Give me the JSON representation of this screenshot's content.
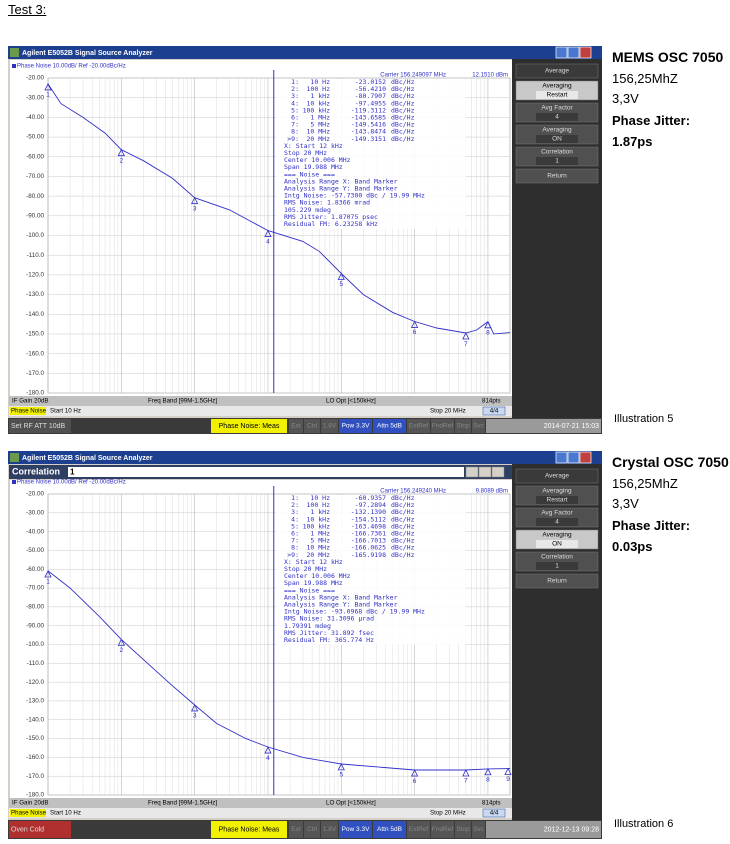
{
  "heading": "Test 3:",
  "screens": [
    {
      "window_title": "Agilent E5052B Signal Source Analyzer",
      "trace_header": "Phase Noise 10.00dB/ Ref -20.00dBc/Hz",
      "carrier": "Carrier 156.249097 MHz",
      "carrier_level": "12.1510 dBm",
      "marker_table": [
        [
          "1:",
          "10 Hz",
          "-23.0152",
          "dBc/Hz"
        ],
        [
          "2:",
          "100 Hz",
          "-56.4210",
          "dBc/Hz"
        ],
        [
          "3:",
          "1 kHz",
          "-80.7907",
          "dBc/Hz"
        ],
        [
          "4:",
          "10 kHz",
          "-97.4955",
          "dBc/Hz"
        ],
        [
          "5:",
          "100 kHz",
          "-119.3112",
          "dBc/Hz"
        ],
        [
          "6:",
          "1 MHz",
          "-143.6585",
          "dBc/Hz"
        ],
        [
          "7:",
          "5 MHz",
          "-149.5416",
          "dBc/Hz"
        ],
        [
          "8:",
          "10 MHz",
          "-143.8474",
          "dBc/Hz"
        ],
        [
          ">9:",
          "20 MHz",
          "-149.3151",
          "dBc/Hz"
        ]
      ],
      "analysis": [
        "X: Start 12 kHz",
        "Stop 20 MHz",
        "Center 10.006 MHz",
        "Span 19.988 MHz",
        "=== Noise ===",
        "Analysis Range X: Band Marker",
        "Analysis Range Y: Band Marker",
        "Intg Noise: -57.7300 dBc / 19.99 MHz",
        "RMS Noise: 1.8366 mrad",
        "105.229 mdeg",
        "RMS Jitter: 1.87075 psec",
        "Residual FM: 6.23258 kHz"
      ],
      "chart": {
        "type": "line",
        "log_x": true,
        "grid": true,
        "color": "#3030c8",
        "xlim": [
          10,
          20000000
        ],
        "ylim": [
          -180,
          -20
        ],
        "xticks": [
          10,
          100,
          1000,
          10000,
          100000,
          1000000,
          10000000
        ],
        "yticks": [
          {
            "value": -20,
            "label": "-20.00"
          },
          {
            "value": -30,
            "label": "-30.00"
          },
          {
            "value": -40,
            "label": "-40.00"
          },
          {
            "value": -50,
            "label": "-50.00"
          },
          {
            "value": -60,
            "label": "-60.00"
          },
          {
            "value": -70,
            "label": "-70.00"
          },
          {
            "value": -80,
            "label": "-80.00"
          },
          {
            "value": -90,
            "label": "-90.00"
          },
          {
            "value": -100,
            "label": "-100.0"
          },
          {
            "value": -110,
            "label": "-110.0"
          },
          {
            "value": -120,
            "label": "-120.0"
          },
          {
            "value": -130,
            "label": "-130.0"
          },
          {
            "value": -140,
            "label": "-140.0"
          },
          {
            "value": -150,
            "label": "-150.0"
          },
          {
            "value": -160,
            "label": "-160.0"
          },
          {
            "value": -170,
            "label": "-170.0"
          },
          {
            "value": -180,
            "label": "-180.0"
          }
        ],
        "x": [
          10,
          15,
          30,
          60,
          100,
          200,
          500,
          1000,
          3000,
          10000,
          30000,
          50000,
          100000,
          200000,
          500000,
          1000000,
          2000000,
          5000000,
          7000000,
          10000000,
          12000000,
          20000000
        ],
        "values": [
          -23,
          -33,
          -40,
          -48,
          -56.4,
          -62,
          -71,
          -80.8,
          -87,
          -97.5,
          -103,
          -108,
          -119.3,
          -130,
          -139,
          -143.7,
          -147,
          -149.5,
          -148,
          -143.8,
          -150,
          -149.3
        ],
        "band_start": 12000,
        "markers": [
          {
            "label": "1",
            "x": 10,
            "value": -23.0152
          },
          {
            "label": "2",
            "x": 100,
            "value": -56.421
          },
          {
            "label": "3",
            "x": 1000,
            "value": -80.7907
          },
          {
            "label": "4",
            "x": 10000,
            "value": -97.4955
          },
          {
            "label": "5",
            "x": 100000,
            "value": -119.3112
          },
          {
            "label": "6",
            "x": 1000000,
            "value": -143.6585
          },
          {
            "label": "7",
            "x": 5000000,
            "value": -149.5416
          },
          {
            "label": "8",
            "x": 10000000,
            "value": -143.8474
          }
        ]
      },
      "footer_top": [
        "IF Gain 20dB",
        "Freq Band [99M-1.5GHz]",
        "LO Opt [<150kHz]",
        "814pts"
      ],
      "footer_mid": [
        "Phase Noise",
        "Start 10 Hz",
        "Stop 20 MHz",
        "4/4"
      ],
      "status": {
        "left": "Set RF ATT 10dB",
        "left_color": "#505050",
        "mode": "Phase Noise: Meas",
        "flags": [
          "Ext",
          "Ctrl",
          "1.8V",
          "Pow 3.3V",
          "Attn 5dB",
          "ExtRef",
          "FndRef",
          "Stop",
          "Svc"
        ],
        "flags_active": [
          3,
          4
        ],
        "time": "2014-07-21 15:03"
      },
      "softkeys": [
        [
          "Average"
        ],
        [
          "Averaging",
          "Restart"
        ],
        [
          "Avg Factor",
          "4"
        ],
        [
          "Averaging",
          "ON"
        ],
        [
          "Correlation",
          "1"
        ],
        [
          "Return"
        ]
      ],
      "softkey_highlight": 1,
      "caption": {
        "title": "MEMS OSC 7050",
        "lines": [
          "156,25MhZ",
          "3,3V"
        ],
        "jitter_label": "Phase Jitter:",
        "jitter": "1.87ps"
      },
      "illustration": "Illustration 5"
    },
    {
      "window_title": "Agilent E5052B Signal Source Analyzer",
      "panel": {
        "title": "Correlation",
        "value": "1"
      },
      "trace_header": "Phase Noise 10.00dB/ Ref -20.00dBc/Hz",
      "carrier": "Carrier 156.249240 MHz",
      "carrier_level": "9.8089 dBm",
      "marker_table": [
        [
          "1:",
          "10 Hz",
          "-60.9357",
          "dBc/Hz"
        ],
        [
          "2:",
          "100 Hz",
          "-97.2894",
          "dBc/Hz"
        ],
        [
          "3:",
          "1 kHz",
          "-132.1390",
          "dBc/Hz"
        ],
        [
          "4:",
          "10 kHz",
          "-154.5112",
          "dBc/Hz"
        ],
        [
          "5:",
          "100 kHz",
          "-163.4698",
          "dBc/Hz"
        ],
        [
          "6:",
          "1 MHz",
          "-166.7361",
          "dBc/Hz"
        ],
        [
          "7:",
          "5 MHz",
          "-166.7013",
          "dBc/Hz"
        ],
        [
          "8:",
          "10 MHz",
          "-166.0625",
          "dBc/Hz"
        ],
        [
          ">9:",
          "20 MHz",
          "-165.9198",
          "dBc/Hz"
        ]
      ],
      "analysis": [
        "X: Start 12 kHz",
        "Stop 20 MHz",
        "Center 10.006 MHz",
        "Span 19.988 MHz",
        "=== Noise ===",
        "Analysis Range X: Band Marker",
        "Analysis Range Y: Band Marker",
        "Intg Noise: -93.0968 dBc / 19.99 MHz",
        "RMS Noise: 31.3096 µrad",
        "1.79391 mdeg",
        "RMS Jitter: 31.892 fsec",
        "Residual FM: 365.774 Hz"
      ],
      "chart": {
        "type": "line",
        "log_x": true,
        "grid": true,
        "color": "#3030c8",
        "xlim": [
          10,
          20000000
        ],
        "ylim": [
          -180,
          -20
        ],
        "xticks": [
          10,
          100,
          1000,
          10000,
          100000,
          1000000,
          10000000
        ],
        "yticks": [
          {
            "value": -20,
            "label": "-20.00"
          },
          {
            "value": -30,
            "label": "-30.00"
          },
          {
            "value": -40,
            "label": "-40.00"
          },
          {
            "value": -50,
            "label": "-50.00"
          },
          {
            "value": -60,
            "label": "-60.00"
          },
          {
            "value": -70,
            "label": "-70.00"
          },
          {
            "value": -80,
            "label": "-80.00"
          },
          {
            "value": -90,
            "label": "-90.00"
          },
          {
            "value": -100,
            "label": "-100.0"
          },
          {
            "value": -110,
            "label": "-110.0"
          },
          {
            "value": -120,
            "label": "-120.0"
          },
          {
            "value": -130,
            "label": "-130.0"
          },
          {
            "value": -140,
            "label": "-140.0"
          },
          {
            "value": -150,
            "label": "-150.0"
          },
          {
            "value": -160,
            "label": "-160.0"
          },
          {
            "value": -170,
            "label": "-170.0"
          },
          {
            "value": -180,
            "label": "-180.0"
          }
        ],
        "x": [
          10,
          20,
          50,
          100,
          200,
          500,
          1000,
          2000,
          5000,
          10000,
          30000,
          100000,
          1000000,
          5000000,
          10000000,
          20000000
        ],
        "values": [
          -60.9,
          -70,
          -85,
          -97.3,
          -108,
          -122,
          -132.1,
          -142,
          -150,
          -154.5,
          -160,
          -163.5,
          -166.7,
          -166.7,
          -166.1,
          -165.9
        ],
        "band_start": 12000,
        "markers": [
          {
            "label": "1",
            "x": 10,
            "value": -60.9357
          },
          {
            "label": "2",
            "x": 100,
            "value": -97.2894
          },
          {
            "label": "3",
            "x": 1000,
            "value": -132.139
          },
          {
            "label": "4",
            "x": 10000,
            "value": -154.5112
          },
          {
            "label": "5",
            "x": 100000,
            "value": -163.4698
          },
          {
            "label": "6",
            "x": 1000000,
            "value": -166.7361
          },
          {
            "label": "7",
            "x": 5000000,
            "value": -166.7013
          },
          {
            "label": "8",
            "x": 10000000,
            "value": -166.0625
          },
          {
            "label": "9",
            "x": 20000000,
            "value": -165.9198
          }
        ]
      },
      "footer_top": [
        "IF Gain 20dB",
        "Freq Band [99M-1.5GHz]",
        "LO Opt [<150kHz]",
        "814pts"
      ],
      "footer_mid": [
        "Phase Noise",
        "Start 10 Hz",
        "Stop 20 MHz",
        "4/4"
      ],
      "status": {
        "left": "Oven Cold",
        "left_color": "#b03030",
        "mode": "Phase Noise: Meas",
        "flags": [
          "Ext",
          "Ctrl",
          "1.8V",
          "Pow 3.3V",
          "Attn 5dB",
          "ExtRef",
          "FndRef",
          "Stop",
          "Svc"
        ],
        "flags_active": [
          3,
          4
        ],
        "time": "2012-12-13 09:28"
      },
      "softkeys": [
        [
          "Average"
        ],
        [
          "Averaging",
          "Restart"
        ],
        [
          "Avg Factor",
          "4"
        ],
        [
          "Averaging",
          "ON"
        ],
        [
          "Correlation",
          "1"
        ],
        [
          "Return"
        ]
      ],
      "softkey_highlight": 3,
      "caption": {
        "title": "Crystal OSC 7050",
        "lines": [
          "156,25MhZ",
          "3,3V"
        ],
        "jitter_label": "Phase Jitter:",
        "jitter": "0.03ps"
      },
      "illustration": "Illustration 6"
    }
  ]
}
